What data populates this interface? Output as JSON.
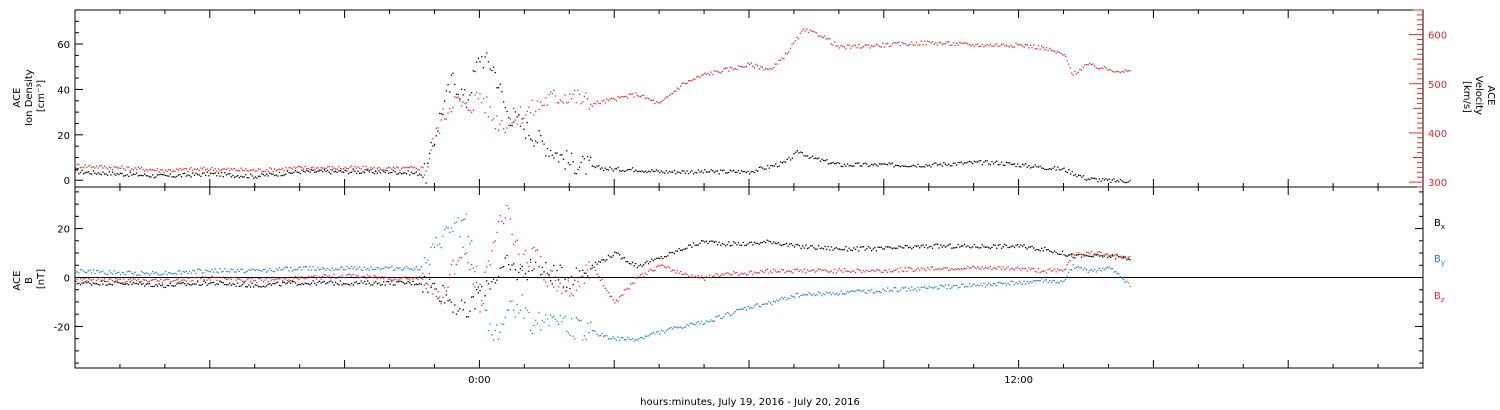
{
  "chart_data": {
    "type": "scatter",
    "xlabel": "hours:minutes, July 19, 2016 - July 20, 2016",
    "x_unit": "hours relative to 0:00 UT July 20, 2016",
    "xlim": [
      -9,
      21
    ],
    "xticks": [
      {
        "value": 0,
        "label": "0:00"
      },
      {
        "value": 12,
        "label": "12:00"
      }
    ],
    "panels": [
      {
        "id": "density-velocity",
        "left_axis": {
          "label_lines": [
            "ACE",
            "Ion Density",
            "[cm⁻³]"
          ],
          "ylim": [
            -3,
            75
          ],
          "ticks": [
            0,
            20,
            40,
            60
          ]
        },
        "right_axis": {
          "label_lines": [
            "ACE",
            "Velocity",
            "[km/s]"
          ],
          "ylim": [
            290,
            650
          ],
          "ticks": [
            300,
            400,
            500,
            600
          ],
          "color": "#e8282d"
        },
        "series": [
          {
            "axis": "left",
            "color": "#000000",
            "x": [
              -9,
              -8,
              -7,
              -6,
              -5,
              -4,
              -3,
              -2,
              -1.2,
              -0.9,
              -0.6,
              -0.3,
              0,
              0.3,
              0.6,
              0.9,
              1.2,
              1.5,
              2,
              2.5,
              3,
              3.5,
              4,
              5,
              6,
              6.8,
              7.1,
              7.4,
              8,
              9,
              10,
              11,
              11.5,
              12,
              12.5,
              13,
              13.5,
              14,
              14.5
            ],
            "y": [
              4,
              3,
              2,
              3,
              2,
              4,
              4,
              4,
              3,
              28,
              45,
              35,
              55,
              50,
              30,
              25,
              20,
              15,
              8,
              6,
              5,
              5,
              4,
              4,
              4,
              8,
              13,
              10,
              7,
              7,
              7,
              8,
              8,
              7,
              6,
              5,
              1,
              0,
              0
            ]
          },
          {
            "axis": "right",
            "color": "#e8282d",
            "x": [
              -9,
              -8,
              -7,
              -6,
              -5,
              -4,
              -3,
              -2,
              -1.2,
              -0.9,
              -0.6,
              -0.3,
              0,
              0.3,
              0.6,
              0.9,
              1.2,
              1.5,
              2,
              2.5,
              3,
              3.5,
              4,
              4.5,
              5,
              5.5,
              6,
              6.5,
              6.8,
              7.2,
              7.6,
              8,
              9,
              10,
              11,
              12,
              12.5,
              13,
              13.2,
              13.5,
              14,
              14.5
            ],
            "y": [
              335,
              330,
              325,
              328,
              325,
              330,
              330,
              328,
              330,
              420,
              470,
              450,
              480,
              430,
              420,
              440,
              450,
              470,
              480,
              460,
              470,
              480,
              460,
              500,
              520,
              530,
              540,
              530,
              560,
              610,
              600,
              575,
              580,
              585,
              580,
              580,
              575,
              560,
              520,
              540,
              530,
              525
            ]
          }
        ]
      },
      {
        "id": "magnetic-field",
        "left_axis": {
          "label_lines": [
            "ACE",
            "B",
            "[nT]"
          ],
          "ylim": [
            -37,
            37
          ],
          "ticks": [
            -20,
            0,
            20
          ]
        },
        "zero_line": true,
        "series": [
          {
            "name": "Bx",
            "color": "#000000",
            "x": [
              -9,
              -8,
              -7,
              -6,
              -5,
              -4,
              -3,
              -2,
              -1.2,
              -0.9,
              -0.6,
              -0.3,
              0,
              0.3,
              0.6,
              0.9,
              1.2,
              1.5,
              2,
              2.5,
              3,
              3.5,
              4,
              4.5,
              5,
              5.5,
              6,
              6.5,
              7,
              8,
              9,
              10,
              11,
              12,
              12.5,
              13,
              13.2,
              13.5,
              14,
              14.5
            ],
            "y": [
              -2,
              -2,
              -3,
              -2,
              -3,
              -2,
              -2,
              -2,
              -2,
              -5,
              -10,
              -15,
              -5,
              0,
              5,
              2,
              5,
              2,
              0,
              5,
              10,
              5,
              8,
              12,
              15,
              14,
              14,
              15,
              13,
              12,
              12,
              13,
              13,
              13,
              12,
              10,
              9,
              9,
              9,
              8
            ]
          },
          {
            "name": "By",
            "color": "#1f82d2",
            "x": [
              -9,
              -8,
              -7,
              -6,
              -5,
              -4,
              -3,
              -2,
              -1.2,
              -0.9,
              -0.6,
              -0.3,
              0,
              0.3,
              0.6,
              0.9,
              1.2,
              1.5,
              2,
              2.5,
              3,
              3.5,
              4,
              4.5,
              5,
              5.5,
              6,
              6.5,
              7,
              8,
              9,
              10,
              11,
              12,
              12.5,
              13,
              13.2,
              13.5,
              14,
              14.5
            ],
            "y": [
              3,
              2,
              2,
              3,
              3,
              4,
              4,
              4,
              4,
              15,
              20,
              22,
              -5,
              -25,
              -15,
              -10,
              -20,
              -15,
              -20,
              -22,
              -25,
              -25,
              -22,
              -20,
              -18,
              -15,
              -12,
              -10,
              -7,
              -6,
              -5,
              -4,
              -3,
              -2,
              -1,
              -2,
              5,
              3,
              4,
              -3
            ]
          },
          {
            "name": "Bz",
            "color": "#e8282d",
            "x": [
              -9,
              -8,
              -7,
              -6,
              -5,
              -4,
              -3,
              -2,
              -1.2,
              -0.9,
              -0.6,
              -0.3,
              0,
              0.3,
              0.6,
              0.9,
              1.2,
              1.5,
              2,
              2.5,
              3,
              3.5,
              4,
              4.5,
              5,
              5.5,
              6,
              6.5,
              7,
              8,
              9,
              10,
              11,
              12,
              12.5,
              13,
              13.2,
              13.5,
              14,
              14.5
            ],
            "y": [
              0,
              -1,
              -1,
              0,
              -1,
              0,
              1,
              0,
              0,
              -10,
              5,
              10,
              -10,
              15,
              30,
              5,
              10,
              0,
              -5,
              5,
              -10,
              0,
              5,
              2,
              0,
              2,
              2,
              3,
              3,
              3,
              3,
              4,
              4,
              4,
              3,
              3,
              10,
              10,
              10,
              8
            ]
          }
        ]
      }
    ]
  }
}
